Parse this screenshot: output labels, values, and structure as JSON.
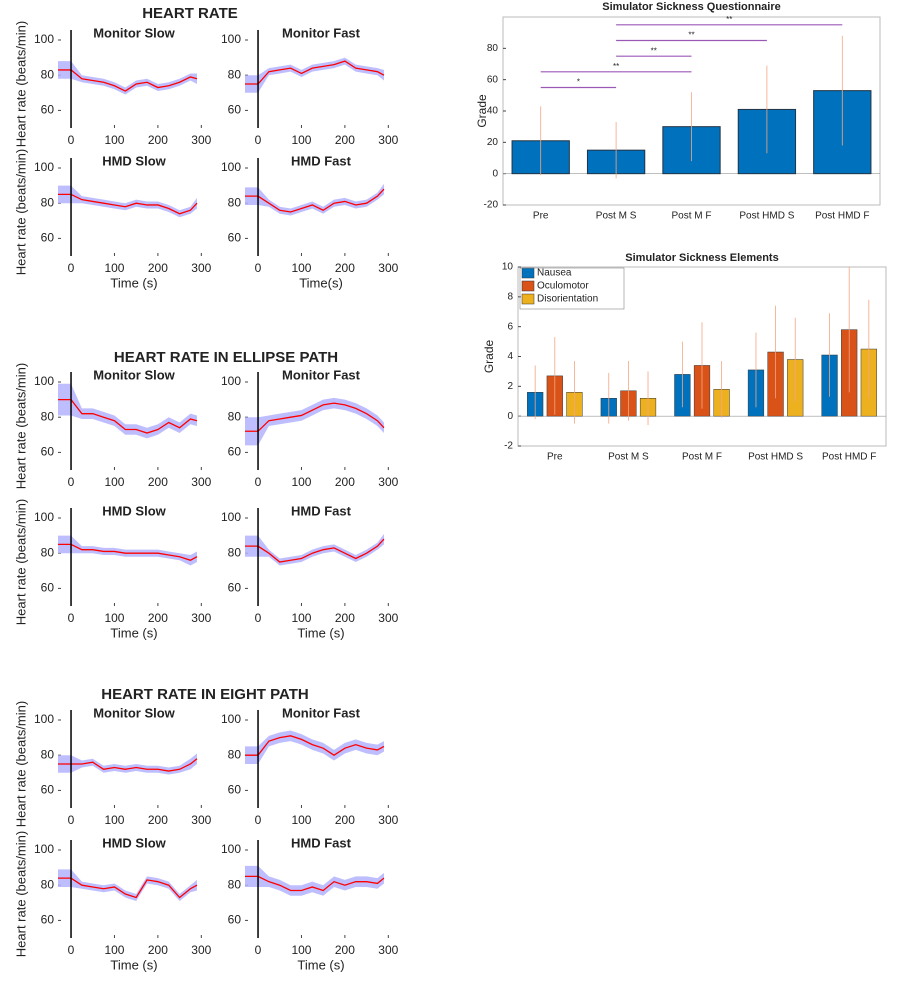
{
  "figure_titles": [
    "HEART RATE",
    "HEART RATE IN ELLIPSE PATH",
    "HEART RATE IN EIGHT PATH"
  ],
  "chart_data": [
    {
      "type": "line",
      "title": "Monitor Slow",
      "ylabel": "Heart rate (beats/min)",
      "x": [
        -30,
        0,
        25,
        50,
        75,
        100,
        125,
        150,
        175,
        200,
        225,
        250,
        275,
        290
      ],
      "values": [
        83,
        83,
        78,
        77,
        76,
        74,
        71,
        75,
        76,
        73,
        74,
        76,
        79,
        78
      ],
      "band": [
        5,
        5,
        2,
        2,
        2,
        2,
        2,
        2,
        2,
        2,
        2,
        2,
        2,
        3
      ],
      "color": "#ff0000",
      "band_color": "#b3b3ff",
      "marker_x": 0,
      "xlim": [
        -30,
        320
      ],
      "ylim": [
        50,
        100
      ],
      "yticks": [
        60,
        80,
        100
      ],
      "xticks": [
        0,
        100,
        200,
        300
      ]
    },
    {
      "type": "line",
      "title": "Monitor Fast",
      "x": [
        -30,
        0,
        25,
        50,
        75,
        100,
        125,
        150,
        175,
        200,
        225,
        250,
        275,
        290
      ],
      "values": [
        75,
        75,
        82,
        83,
        84,
        81,
        84,
        85,
        86,
        88,
        84,
        83,
        82,
        80
      ],
      "band": [
        5,
        5,
        2,
        2,
        2,
        2,
        2,
        2,
        2,
        2,
        2,
        2,
        2,
        3
      ],
      "color": "#ff0000",
      "band_color": "#b3b3ff",
      "marker_x": 0,
      "xlim": [
        -30,
        320
      ],
      "ylim": [
        50,
        100
      ],
      "yticks": [
        60,
        80,
        100
      ],
      "xticks": [
        0,
        100,
        200,
        300
      ]
    },
    {
      "type": "line",
      "title": "HMD Slow",
      "ylabel": "Heart rate (beats/min)",
      "xlabel": "Time (s)",
      "x": [
        -30,
        0,
        25,
        50,
        75,
        100,
        125,
        150,
        175,
        200,
        225,
        250,
        275,
        290
      ],
      "values": [
        85,
        85,
        82,
        81,
        80,
        79,
        78,
        80,
        79,
        79,
        77,
        74,
        76,
        80
      ],
      "band": [
        5,
        5,
        2,
        2,
        2,
        2,
        2,
        2,
        2,
        2,
        2,
        2,
        2,
        3
      ],
      "color": "#ff0000",
      "band_color": "#b3b3ff",
      "marker_x": 0,
      "xlim": [
        -30,
        320
      ],
      "ylim": [
        50,
        100
      ],
      "yticks": [
        60,
        80,
        100
      ],
      "xticks": [
        0,
        100,
        200,
        300
      ]
    },
    {
      "type": "line",
      "title": "HMD Fast",
      "xlabel": "Time(s)",
      "x": [
        -30,
        0,
        25,
        50,
        75,
        100,
        125,
        150,
        175,
        200,
        225,
        250,
        275,
        290
      ],
      "values": [
        84,
        84,
        80,
        76,
        75,
        77,
        79,
        76,
        80,
        81,
        79,
        80,
        84,
        88
      ],
      "band": [
        5,
        5,
        2,
        2,
        2,
        2,
        2,
        2,
        2,
        2,
        2,
        2,
        2,
        3
      ],
      "color": "#ff0000",
      "band_color": "#b3b3ff",
      "marker_x": 0,
      "xlim": [
        -30,
        320
      ],
      "ylim": [
        50,
        100
      ],
      "yticks": [
        60,
        80,
        100
      ],
      "xticks": [
        0,
        100,
        200,
        300
      ]
    },
    {
      "type": "line",
      "title": "Monitor Slow",
      "ylabel": "Heart rate (beats/min)",
      "x": [
        -30,
        0,
        25,
        50,
        75,
        100,
        125,
        150,
        175,
        200,
        225,
        250,
        275,
        290
      ],
      "values": [
        90,
        90,
        82,
        82,
        80,
        78,
        73,
        73,
        71,
        73,
        77,
        74,
        79,
        78
      ],
      "band": [
        9,
        9,
        3,
        3,
        3,
        3,
        3,
        3,
        3,
        3,
        3,
        3,
        3,
        3
      ],
      "color": "#ff0000",
      "band_color": "#b3b3ff",
      "marker_x": 0,
      "xlim": [
        -30,
        320
      ],
      "ylim": [
        50,
        100
      ],
      "yticks": [
        60,
        80,
        100
      ],
      "xticks": [
        0,
        100,
        200,
        300
      ]
    },
    {
      "type": "line",
      "title": "Monitor Fast",
      "x": [
        -30,
        0,
        25,
        50,
        75,
        100,
        125,
        150,
        175,
        200,
        225,
        250,
        275,
        290
      ],
      "values": [
        72,
        72,
        78,
        79,
        80,
        81,
        84,
        87,
        88,
        87,
        85,
        82,
        78,
        74
      ],
      "band": [
        8,
        8,
        3,
        3,
        3,
        3,
        3,
        3,
        3,
        3,
        3,
        3,
        3,
        3
      ],
      "color": "#ff0000",
      "band_color": "#b3b3ff",
      "marker_x": 0,
      "xlim": [
        -30,
        320
      ],
      "ylim": [
        50,
        100
      ],
      "yticks": [
        60,
        80,
        100
      ],
      "xticks": [
        0,
        100,
        200,
        300
      ]
    },
    {
      "type": "line",
      "title": "HMD Slow",
      "ylabel": "Heart rate (beats/min)",
      "xlabel": "Time (s)",
      "x": [
        -30,
        0,
        25,
        50,
        75,
        100,
        125,
        150,
        175,
        200,
        225,
        250,
        275,
        290
      ],
      "values": [
        85,
        85,
        82,
        82,
        81,
        81,
        80,
        80,
        80,
        80,
        79,
        78,
        76,
        78
      ],
      "band": [
        5,
        5,
        2,
        2,
        2,
        2,
        2,
        2,
        2,
        2,
        2,
        2,
        3,
        3
      ],
      "color": "#ff0000",
      "band_color": "#b3b3ff",
      "marker_x": 0,
      "xlim": [
        -30,
        320
      ],
      "ylim": [
        50,
        100
      ],
      "yticks": [
        60,
        80,
        100
      ],
      "xticks": [
        0,
        100,
        200,
        300
      ]
    },
    {
      "type": "line",
      "title": "HMD Fast",
      "xlabel": "Time (s)",
      "x": [
        -30,
        0,
        25,
        50,
        75,
        100,
        125,
        150,
        175,
        200,
        225,
        250,
        275,
        290
      ],
      "values": [
        84,
        84,
        80,
        75,
        76,
        77,
        80,
        82,
        83,
        80,
        77,
        80,
        84,
        88
      ],
      "band": [
        6,
        6,
        2,
        2,
        2,
        2,
        2,
        2,
        2,
        2,
        2,
        2,
        2,
        3
      ],
      "color": "#ff0000",
      "band_color": "#b3b3ff",
      "marker_x": 0,
      "xlim": [
        -30,
        320
      ],
      "ylim": [
        50,
        100
      ],
      "yticks": [
        60,
        80,
        100
      ],
      "xticks": [
        0,
        100,
        200,
        300
      ]
    },
    {
      "type": "line",
      "title": "Monitor Slow",
      "ylabel": "Heart rate (beats/min)",
      "x": [
        -30,
        0,
        25,
        50,
        75,
        100,
        125,
        150,
        175,
        200,
        225,
        250,
        275,
        290
      ],
      "values": [
        75,
        75,
        75,
        76,
        72,
        73,
        72,
        73,
        72,
        72,
        71,
        72,
        75,
        78
      ],
      "band": [
        5,
        5,
        2,
        2,
        2,
        2,
        2,
        2,
        2,
        2,
        2,
        2,
        3,
        3
      ],
      "color": "#ff0000",
      "band_color": "#b3b3ff",
      "marker_x": 0,
      "xlim": [
        -30,
        320
      ],
      "ylim": [
        50,
        100
      ],
      "yticks": [
        60,
        80,
        100
      ],
      "xticks": [
        0,
        100,
        200,
        300
      ]
    },
    {
      "type": "line",
      "title": "Monitor Fast",
      "x": [
        -30,
        0,
        25,
        50,
        75,
        100,
        125,
        150,
        175,
        200,
        225,
        250,
        275,
        290
      ],
      "values": [
        80,
        80,
        88,
        90,
        91,
        89,
        86,
        84,
        80,
        84,
        86,
        84,
        83,
        85
      ],
      "band": [
        5,
        5,
        3,
        3,
        3,
        3,
        3,
        3,
        3,
        3,
        3,
        3,
        3,
        3
      ],
      "color": "#ff0000",
      "band_color": "#b3b3ff",
      "marker_x": 0,
      "xlim": [
        -30,
        320
      ],
      "ylim": [
        50,
        100
      ],
      "yticks": [
        60,
        80,
        100
      ],
      "xticks": [
        0,
        100,
        200,
        300
      ]
    },
    {
      "type": "line",
      "title": "HMD Slow",
      "ylabel": "Heart rate (beats/min)",
      "xlabel": "Time (s)",
      "x": [
        -30,
        0,
        25,
        50,
        75,
        100,
        125,
        150,
        175,
        200,
        225,
        250,
        275,
        290
      ],
      "values": [
        84,
        84,
        80,
        79,
        78,
        79,
        75,
        73,
        83,
        82,
        80,
        73,
        78,
        80
      ],
      "band": [
        5,
        5,
        2,
        2,
        2,
        2,
        2,
        2,
        2,
        2,
        2,
        2,
        2,
        3
      ],
      "color": "#ff0000",
      "band_color": "#b3b3ff",
      "marker_x": 0,
      "xlim": [
        -30,
        320
      ],
      "ylim": [
        50,
        100
      ],
      "yticks": [
        60,
        80,
        100
      ],
      "xticks": [
        0,
        100,
        200,
        300
      ]
    },
    {
      "type": "line",
      "title": "HMD Fast",
      "xlabel": "Time (s)",
      "x": [
        -30,
        0,
        25,
        50,
        75,
        100,
        125,
        150,
        175,
        200,
        225,
        250,
        275,
        290
      ],
      "values": [
        85,
        85,
        82,
        80,
        77,
        77,
        79,
        77,
        82,
        80,
        82,
        82,
        81,
        84
      ],
      "band": [
        6,
        6,
        3,
        3,
        3,
        3,
        3,
        3,
        3,
        3,
        3,
        3,
        3,
        3
      ],
      "color": "#ff0000",
      "band_color": "#b3b3ff",
      "marker_x": 0,
      "xlim": [
        -30,
        320
      ],
      "ylim": [
        50,
        100
      ],
      "yticks": [
        60,
        80,
        100
      ],
      "xticks": [
        0,
        100,
        200,
        300
      ]
    },
    {
      "type": "bar",
      "title": "Simulator Sickness Questionnaire",
      "ylabel": "Grade",
      "categories": [
        "Pre",
        "Post M S",
        "Post M F",
        "Post HMD S",
        "Post HMD F"
      ],
      "values": [
        21,
        15,
        30,
        41,
        53
      ],
      "errors": [
        22,
        18,
        22,
        28,
        35
      ],
      "color": "#0072bd",
      "error_color": "#f4a582",
      "ylim": [
        -20,
        100
      ],
      "yticks": [
        -20,
        0,
        20,
        40,
        60,
        80
      ],
      "brackets": [
        {
          "from": "Pre",
          "to": "Post M S",
          "value": 55,
          "label": "*"
        },
        {
          "from": "Pre",
          "to": "Post M F",
          "value": 65,
          "label": "**"
        },
        {
          "from": "Post M S",
          "to": "Post M F",
          "value": 75,
          "label": "**"
        },
        {
          "from": "Post M S",
          "to": "Post HMD S",
          "value": 85,
          "label": "**"
        },
        {
          "from": "Post M S",
          "to": "Post HMD F",
          "value": 95,
          "label": "**"
        }
      ],
      "bracket_color": "#9b59b6"
    },
    {
      "type": "grouped_bar",
      "title": "Simulator Sickness Elements",
      "ylabel": "Grade",
      "categories": [
        "Pre",
        "Post M S",
        "Post M F",
        "Post HMD S",
        "Post HMD F"
      ],
      "series": [
        {
          "name": "Nausea",
          "color": "#0072bd",
          "values": [
            1.6,
            1.2,
            2.8,
            3.1,
            4.1
          ],
          "errors": [
            1.8,
            1.7,
            2.2,
            2.5,
            2.8
          ]
        },
        {
          "name": "Oculomotor",
          "color": "#d95319",
          "values": [
            2.7,
            1.7,
            3.4,
            4.3,
            5.8
          ],
          "errors": [
            2.6,
            2.0,
            2.9,
            3.1,
            4.2
          ]
        },
        {
          "name": "Disorientation",
          "color": "#edb120",
          "values": [
            1.6,
            1.2,
            1.8,
            3.8,
            4.5
          ],
          "errors": [
            2.1,
            1.8,
            1.9,
            2.8,
            3.3
          ]
        }
      ],
      "error_color": "#f4a582",
      "ylim": [
        -2,
        10
      ],
      "yticks": [
        -2,
        0,
        2,
        4,
        6,
        8,
        10
      ],
      "legend": "upper-left"
    }
  ]
}
